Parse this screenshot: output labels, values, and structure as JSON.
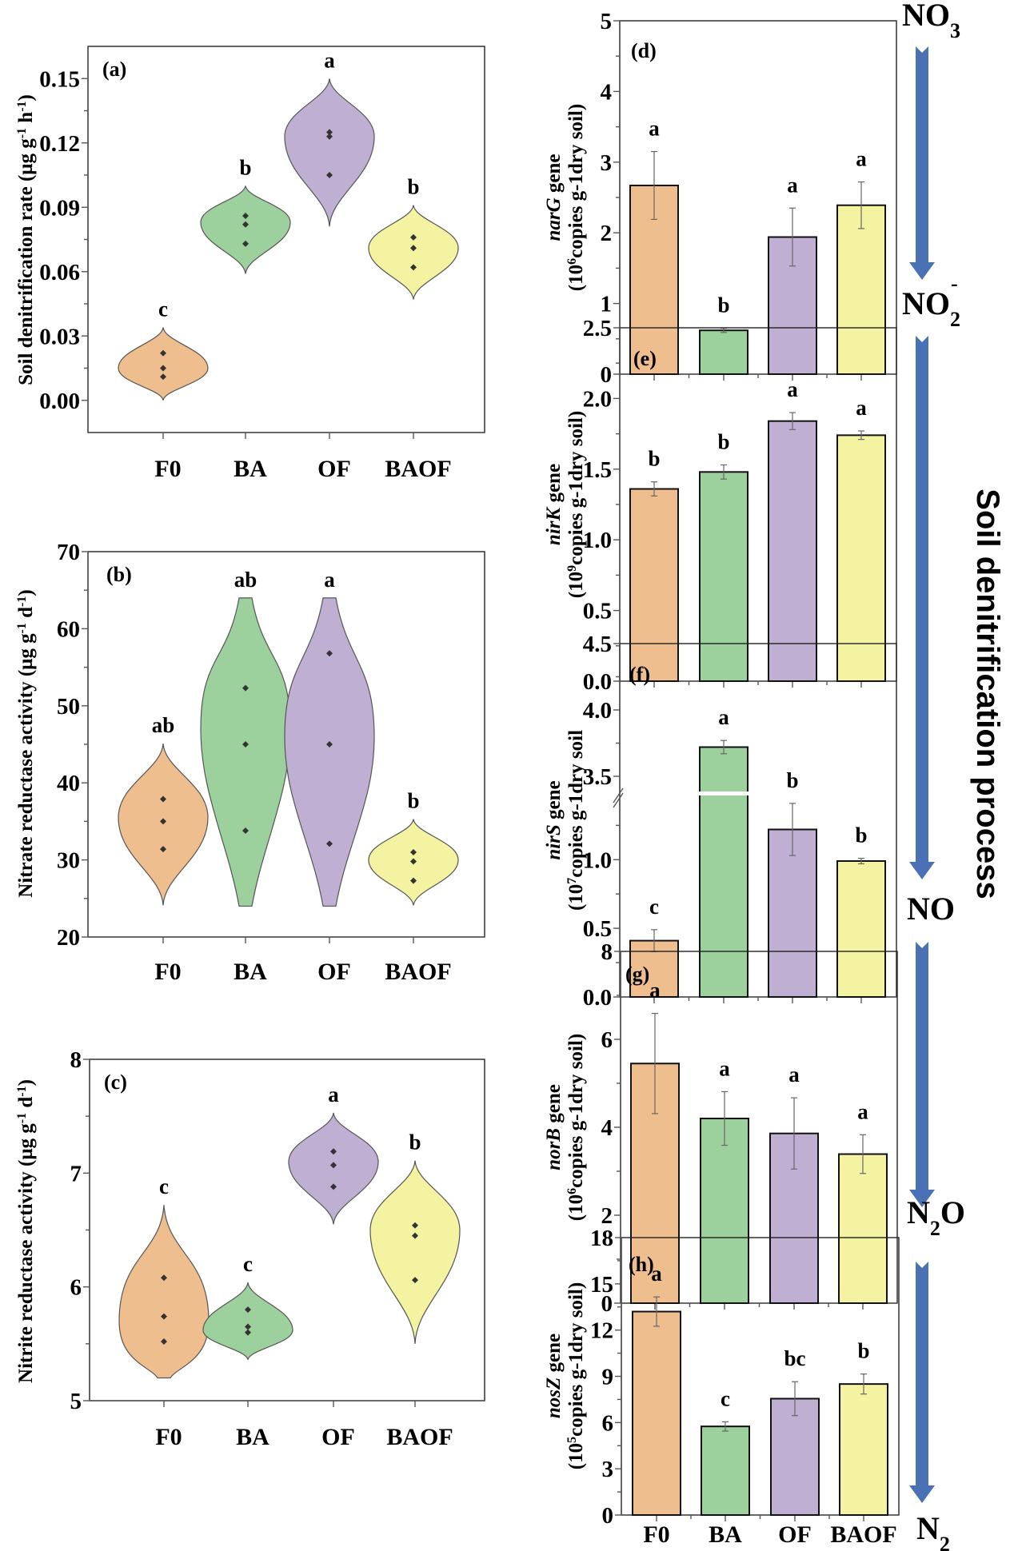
{
  "colors": {
    "F0": "#EFBE8F",
    "BA": "#9CD09C",
    "OF": "#BFB0D3",
    "BAOF": "#F4F3A2",
    "arrow": "#4A70B5"
  },
  "process_label": "Soil denitrification process",
  "species": [
    {
      "base": "NO",
      "sub": "3",
      "sup": "-"
    },
    {
      "base": "NO",
      "sub": "2",
      "sup": "-"
    },
    {
      "base": "NO",
      "sub": "",
      "sup": ""
    },
    {
      "base": "N",
      "sub": "2",
      "sup": "",
      "tail": "O"
    },
    {
      "base": "N",
      "sub": "2",
      "sup": ""
    }
  ],
  "chart_data": [
    {
      "id": "a",
      "panel_label": "(a)",
      "type": "violin",
      "categories": [
        "F0",
        "BA",
        "OF",
        "BAOF"
      ],
      "ylabel": "Soil denitrification rate (μg g⁻¹ h⁻¹)",
      "ylabel_parts": [
        "Soil denitrification rate (μg g",
        "-1",
        " h",
        "-1",
        ")"
      ],
      "ylim": [
        -0.015,
        0.165
      ],
      "yticks": [
        0.0,
        0.03,
        0.06,
        0.09,
        0.12,
        0.15
      ],
      "ytick_labels": [
        "0.00",
        "0.03",
        "0.06",
        "0.09",
        "0.12",
        "0.15"
      ],
      "minor_ticks": true,
      "points": [
        [
          0.011,
          0.015,
          0.022
        ],
        [
          0.073,
          0.082,
          0.086
        ],
        [
          0.105,
          0.123,
          0.125
        ],
        [
          0.062,
          0.071,
          0.076
        ]
      ],
      "violin_range": [
        [
          0.0,
          0.034
        ],
        [
          0.059,
          0.1
        ],
        [
          0.081,
          0.15
        ],
        [
          0.047,
          0.091
        ]
      ],
      "violin_width": [
        0.85,
        0.85,
        0.85,
        0.85
      ],
      "violin_peak": [
        0.015,
        0.083,
        0.123,
        0.071
      ],
      "letters": [
        "c",
        "b",
        "a",
        "b"
      ]
    },
    {
      "id": "b",
      "panel_label": "(b)",
      "type": "violin",
      "categories": [
        "F0",
        "BA",
        "OF",
        "BAOF"
      ],
      "ylabel": "Nitrate reductase activity (μg g⁻¹ d⁻¹)",
      "ylabel_parts": [
        "Nitrate reductase activity (μg g",
        "-1",
        " d",
        "-1",
        ")"
      ],
      "ylim": [
        20,
        70
      ],
      "yticks": [
        20,
        30,
        40,
        50,
        60,
        70
      ],
      "ytick_labels": [
        "20",
        "30",
        "40",
        "50",
        "60",
        "70"
      ],
      "minor_ticks": true,
      "points": [
        [
          31.4,
          35.0,
          37.9
        ],
        [
          33.8,
          45.0,
          52.3
        ],
        [
          32.1,
          45.0,
          56.8
        ],
        [
          27.3,
          29.8,
          31.0
        ]
      ],
      "violin_range": [
        [
          24.1,
          45.1
        ],
        [
          24.0,
          64.0
        ],
        [
          24.0,
          64.0
        ],
        [
          24.1,
          35.3
        ]
      ],
      "violin_width": [
        0.85,
        0.85,
        0.85,
        0.85
      ],
      "violin_peak": [
        35.5,
        47.0,
        46.0,
        30.0
      ],
      "letters": [
        "ab",
        "ab",
        "a",
        "b"
      ]
    },
    {
      "id": "c",
      "panel_label": "(c)",
      "type": "violin",
      "categories": [
        "F0",
        "BA",
        "OF",
        "BAOF"
      ],
      "ylabel": "Nitrite reductase activity (μg g⁻¹ d⁻¹)",
      "ylabel_parts": [
        "Nitrite reductase activity (μg g",
        "-1",
        " d",
        "-1",
        ")"
      ],
      "ylim": [
        5,
        8
      ],
      "yticks": [
        5,
        6,
        7,
        8
      ],
      "ytick_labels": [
        "5",
        "6",
        "7",
        "8"
      ],
      "minor_ticks": true,
      "points": [
        [
          5.52,
          5.74,
          6.08
        ],
        [
          5.6,
          5.65,
          5.8
        ],
        [
          6.88,
          7.07,
          7.19
        ],
        [
          6.06,
          6.45,
          6.54
        ]
      ],
      "violin_range": [
        [
          5.2,
          6.72
        ],
        [
          5.36,
          6.04
        ],
        [
          6.55,
          7.53
        ],
        [
          5.5,
          7.11
        ]
      ],
      "violin_width": [
        0.85,
        0.85,
        0.85,
        0.85
      ],
      "violin_peak": [
        5.7,
        5.62,
        7.1,
        6.5
      ],
      "letters": [
        "c",
        "c",
        "a",
        "b"
      ]
    },
    {
      "id": "d",
      "panel_label": "(d)",
      "type": "bar",
      "categories": [
        "F0",
        "BA",
        "OF",
        "BAOF"
      ],
      "gene": "narG",
      "ylabel_line1": " gene",
      "ylabel_exp": "6",
      "ylabel_line2": "copies g-1dry soil)",
      "ylim": [
        0,
        5
      ],
      "yticks": [
        0,
        1,
        2,
        3,
        4,
        5
      ],
      "ytick_labels": [
        "0",
        "1",
        "2",
        "3",
        "4",
        "5"
      ],
      "values": [
        2.67,
        0.62,
        1.94,
        2.39
      ],
      "errors": [
        0.48,
        0.03,
        0.41,
        0.33
      ],
      "letters": [
        "a",
        "b",
        "a",
        "a"
      ],
      "show_xlabels": false
    },
    {
      "id": "e",
      "panel_label": "(e)",
      "type": "bar",
      "categories": [
        "F0",
        "BA",
        "OF",
        "BAOF"
      ],
      "gene": "nirK",
      "ylabel_line1": " gene",
      "ylabel_exp": "9",
      "ylabel_line2": "copies g-1dry soil)",
      "ylim": [
        0,
        2.5
      ],
      "yticks": [
        0,
        0.5,
        1.0,
        1.5,
        2.0,
        2.5
      ],
      "ytick_labels": [
        "0.0",
        "0.5",
        "1.0",
        "1.5",
        "2.0",
        "2.5"
      ],
      "values": [
        1.36,
        1.48,
        1.84,
        1.74
      ],
      "errors": [
        0.05,
        0.05,
        0.06,
        0.03
      ],
      "letters": [
        "b",
        "b",
        "a",
        "a"
      ],
      "show_xlabels": false
    },
    {
      "id": "f",
      "panel_label": "(f)",
      "type": "bar",
      "categories": [
        "F0",
        "BA",
        "OF",
        "BAOF"
      ],
      "gene": "nirS",
      "ylabel_line1": " gene",
      "ylabel_exp": "7",
      "ylabel_line2": "copies g-1dry soil",
      "axis_break": {
        "lower": [
          0,
          1.45
        ],
        "upper": [
          3.35,
          4.5
        ]
      },
      "ylim": [
        0,
        4.5
      ],
      "yticks": [
        0,
        0.5,
        1.0,
        3.5,
        4.0,
        4.5
      ],
      "ytick_labels": [
        "0.0",
        "0.5",
        "1.0",
        "3.5",
        "4.0",
        "4.5"
      ],
      "values": [
        0.41,
        3.72,
        1.22,
        0.99
      ],
      "errors": [
        0.08,
        0.05,
        0.19,
        0.02
      ],
      "letters": [
        "c",
        "a",
        "b",
        "b"
      ],
      "show_xlabels": false
    },
    {
      "id": "g",
      "panel_label": "(g)",
      "type": "bar",
      "categories": [
        "F0",
        "BA",
        "OF",
        "BAOF"
      ],
      "gene": "norB",
      "ylabel_line1": " gene",
      "ylabel_exp": "6",
      "ylabel_line2": "copies g-1dry soil)",
      "ylim": [
        0,
        8
      ],
      "yticks": [
        0,
        2,
        4,
        6,
        8
      ],
      "ytick_labels": [
        "0",
        "2",
        "4",
        "6",
        "8"
      ],
      "values": [
        5.45,
        4.2,
        3.86,
        3.39
      ],
      "errors": [
        1.14,
        0.61,
        0.81,
        0.44
      ],
      "letters": [
        "a",
        "a",
        "a",
        "a"
      ],
      "show_xlabels": false
    },
    {
      "id": "h",
      "panel_label": "(h)",
      "type": "bar",
      "categories": [
        "F0",
        "BA",
        "OF",
        "BAOF"
      ],
      "gene": "nosZ",
      "ylabel_line1": " gene",
      "ylabel_exp": "5",
      "ylabel_line2": "copies g-1dry soil)",
      "ylim": [
        0,
        18
      ],
      "yticks": [
        0,
        3,
        6,
        9,
        12,
        15,
        18
      ],
      "ytick_labels": [
        "0",
        "3",
        "6",
        "9",
        "12",
        "15",
        "18"
      ],
      "values": [
        13.2,
        5.75,
        7.55,
        8.5
      ],
      "errors": [
        0.95,
        0.3,
        1.1,
        0.65
      ],
      "letters": [
        "a",
        "c",
        "bc",
        "b"
      ],
      "show_xlabels": true
    }
  ]
}
